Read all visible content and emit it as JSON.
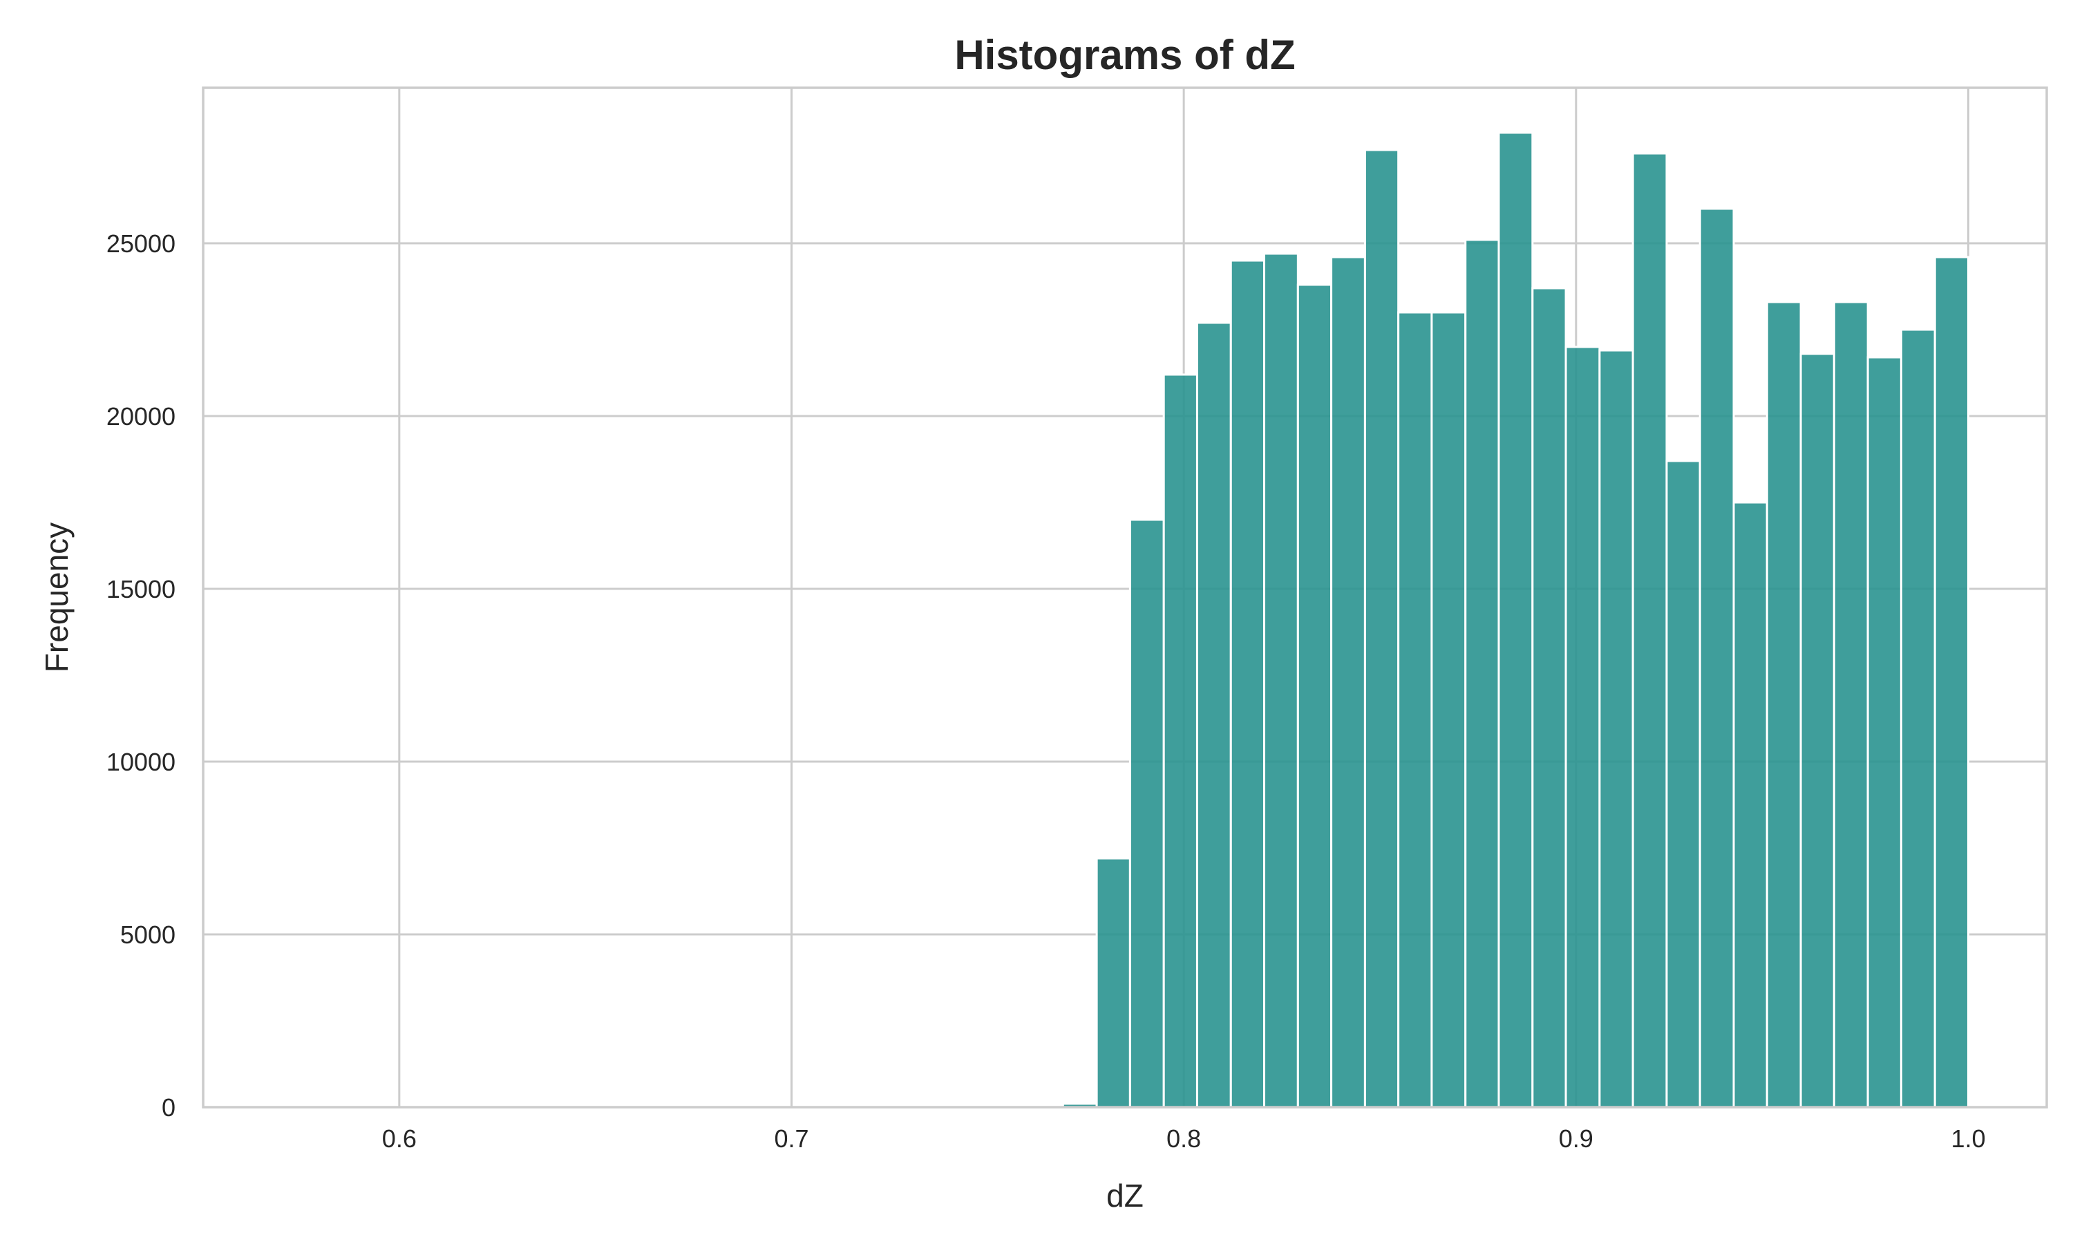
{
  "chart_data": {
    "type": "bar",
    "title": "Histograms of dZ",
    "xlabel": "dZ",
    "ylabel": "Frequency",
    "xlim": [
      0.55,
      1.02
    ],
    "ylim": [
      0,
      29500
    ],
    "xticks": [
      0.6,
      0.7,
      0.8,
      0.9,
      1.0
    ],
    "xtick_labels": [
      "0.6",
      "0.7",
      "0.8",
      "0.9",
      "1.0"
    ],
    "yticks": [
      0,
      5000,
      10000,
      15000,
      20000,
      25000
    ],
    "ytick_labels": [
      "0",
      "5000",
      "10000",
      "15000",
      "20000",
      "25000"
    ],
    "grid": true,
    "bar_color": "#2a9490",
    "bin_edges": [
      0.7692,
      0.7778,
      0.7863,
      0.7949,
      0.8034,
      0.812,
      0.8205,
      0.8291,
      0.8376,
      0.8462,
      0.8547,
      0.8632,
      0.8718,
      0.8803,
      0.8889,
      0.8974,
      0.906,
      0.9145,
      0.9231,
      0.9316,
      0.9402,
      0.9487,
      0.9573,
      0.9658,
      0.9744,
      0.9829,
      0.9915,
      1.0
    ],
    "values": [
      100,
      7200,
      17000,
      21200,
      22700,
      24500,
      24700,
      23800,
      24600,
      27700,
      23000,
      23000,
      25100,
      28200,
      23700,
      22000,
      21900,
      27600,
      18700,
      26000,
      17500,
      23300,
      21800,
      23300,
      21700,
      22500,
      24600
    ]
  }
}
